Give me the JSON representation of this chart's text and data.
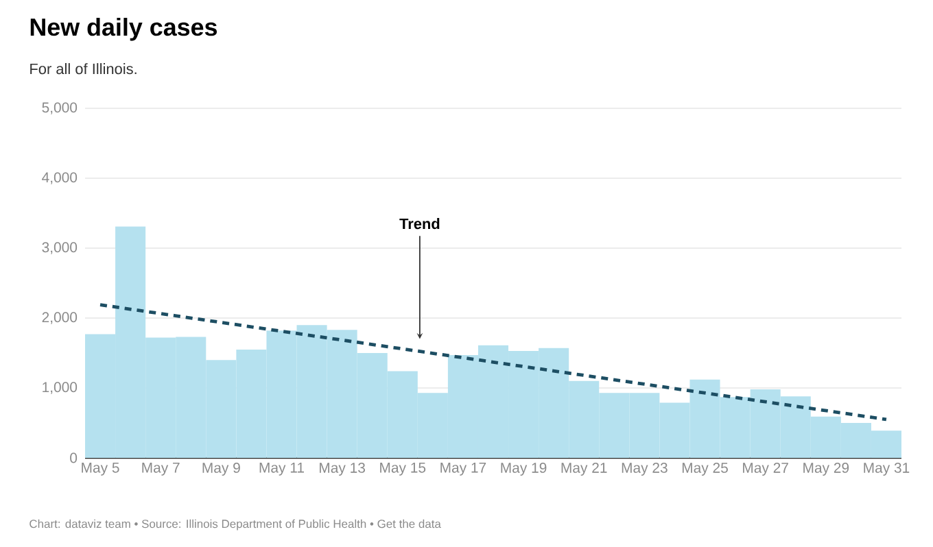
{
  "chart_data": {
    "type": "bar",
    "title": "New daily cases",
    "subtitle": "For all of Illinois.",
    "categories": [
      "May 5",
      null,
      "May 7",
      null,
      "May 9",
      null,
      "May 11",
      null,
      "May 13",
      null,
      "May 15",
      null,
      "May 17",
      null,
      "May 19",
      null,
      "May 21",
      null,
      "May 23",
      null,
      "May 25",
      null,
      "May 27",
      null,
      "May 29",
      null,
      "May 31"
    ],
    "series": [
      {
        "color": "#b5e1ef",
        "values": [
          1770,
          3310,
          1720,
          1730,
          1400,
          1550,
          1820,
          1900,
          1830,
          1500,
          1240,
          930,
          1470,
          1610,
          1530,
          1570,
          1100,
          930,
          930,
          790,
          1120,
          870,
          980,
          880,
          590,
          500,
          390
        ]
      },
      {
        "type": "line",
        "color": "#1d4e63",
        "line_style": "dashed",
        "x": [
          "May 5",
          "May 31"
        ],
        "values": [
          2190,
          550
        ]
      }
    ],
    "ylim": [
      0,
      5000
    ],
    "yticks": [
      0,
      {
        "value": 1000,
        "label": "1,000"
      },
      {
        "value": 2000,
        "label": "2,000"
      },
      {
        "value": 3000,
        "label": "3,000"
      },
      {
        "value": 4000,
        "label": "4,000"
      },
      {
        "value": 5000,
        "label": "5,000"
      }
    ],
    "grid": "y",
    "annotations": [
      "Trend",
      "Chart: dataviz team • Source: Illinois Department of Public Health • Get the data"
    ]
  }
}
